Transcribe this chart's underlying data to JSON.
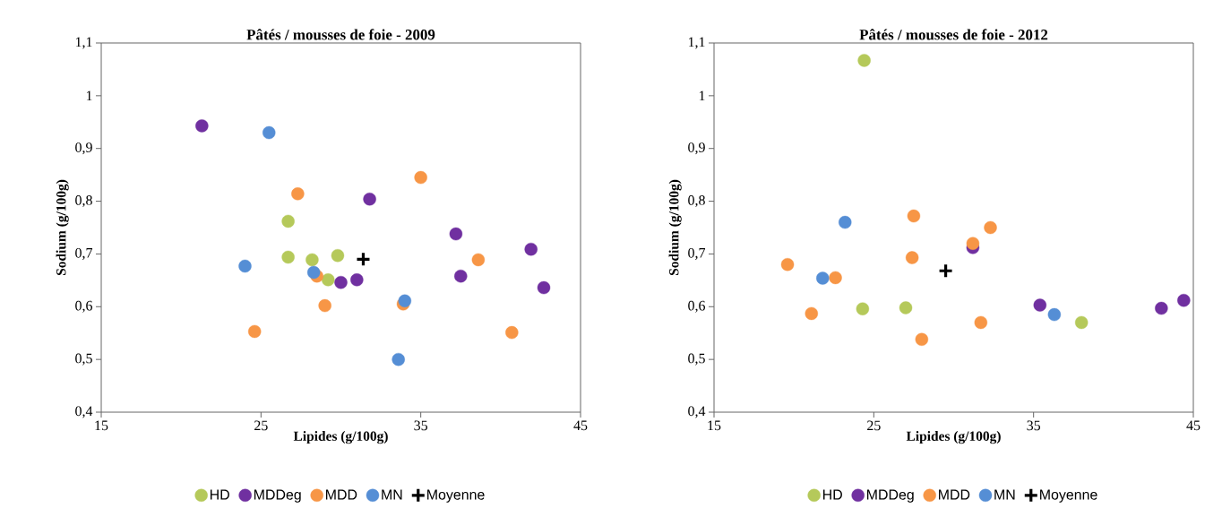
{
  "chart_data": [
    {
      "type": "scatter",
      "title": "Pâtés / mousses de foie - 2009",
      "xlabel": "Lipides (g/100g)",
      "ylabel": "Sodium (g/100g)",
      "xlim": [
        15,
        45
      ],
      "xticks": [
        15,
        25,
        35,
        45
      ],
      "ylim": [
        0.4,
        1.1
      ],
      "yticks": [
        {
          "value": 0.4,
          "label": "0,4"
        },
        {
          "value": 0.5,
          "label": "0,5"
        },
        {
          "value": 0.6,
          "label": "0,6"
        },
        {
          "value": 0.7,
          "label": "0,7"
        },
        {
          "value": 0.8,
          "label": "0,8"
        },
        {
          "value": 0.9,
          "label": "0,9"
        },
        {
          "value": 1,
          "label": "1"
        },
        {
          "value": 1.1,
          "label": "1,1"
        }
      ],
      "legend": "bottom",
      "series": [
        {
          "name": "HD",
          "color": "#b5c95a",
          "marker": "circle",
          "x": [
            26.7,
            26.7,
            28.2,
            29.8,
            29.2
          ],
          "values": [
            0.762,
            0.694,
            0.689,
            0.697,
            0.651
          ]
        },
        {
          "name": "MDDeg",
          "color": "#7030a0",
          "marker": "circle",
          "x": [
            21.3,
            31.8,
            37.2,
            41.9,
            37.5,
            30.0,
            31.0,
            42.7
          ],
          "values": [
            0.943,
            0.804,
            0.738,
            0.709,
            0.658,
            0.646,
            0.651,
            0.636
          ]
        },
        {
          "name": "MDD",
          "color": "#f79646",
          "marker": "circle",
          "x": [
            27.3,
            35.0,
            28.5,
            29.0,
            24.6,
            33.9,
            38.6,
            40.7
          ],
          "values": [
            0.814,
            0.845,
            0.658,
            0.602,
            0.553,
            0.605,
            0.689,
            0.551
          ]
        },
        {
          "name": "MN",
          "color": "#558ed5",
          "marker": "circle",
          "x": [
            25.5,
            24.0,
            28.3,
            34.0,
            33.6
          ],
          "values": [
            0.93,
            0.677,
            0.665,
            0.611,
            0.5
          ]
        },
        {
          "name": "Moyenne",
          "color": "#000000",
          "marker": "cross",
          "x": [
            31.4
          ],
          "values": [
            0.69
          ]
        }
      ]
    },
    {
      "type": "scatter",
      "title": "Pâtés / mousses de foie - 2012",
      "xlabel": "Lipides (g/100g)",
      "ylabel": "Sodium (g/100g)",
      "xlim": [
        15,
        45
      ],
      "xticks": [
        15,
        25,
        35,
        45
      ],
      "ylim": [
        0.4,
        1.1
      ],
      "yticks": [
        {
          "value": 0.4,
          "label": "0,4"
        },
        {
          "value": 0.5,
          "label": "0,5"
        },
        {
          "value": 0.6,
          "label": "0,6"
        },
        {
          "value": 0.7,
          "label": "0,7"
        },
        {
          "value": 0.8,
          "label": "0,8"
        },
        {
          "value": 0.9,
          "label": "0,9"
        },
        {
          "value": 1,
          "label": "1"
        },
        {
          "value": 1.1,
          "label": "1,1"
        }
      ],
      "legend": "bottom",
      "series": [
        {
          "name": "HD",
          "color": "#b5c95a",
          "marker": "circle",
          "x": [
            24.4,
            24.3,
            27.0,
            38.0
          ],
          "values": [
            1.067,
            0.596,
            0.598,
            0.57
          ]
        },
        {
          "name": "MDDeg",
          "color": "#7030a0",
          "marker": "circle",
          "x": [
            31.2,
            35.4,
            43.0,
            44.4
          ],
          "values": [
            0.712,
            0.603,
            0.597,
            0.612
          ]
        },
        {
          "name": "MDD",
          "color": "#f79646",
          "marker": "circle",
          "x": [
            19.6,
            21.1,
            22.6,
            27.5,
            27.4,
            31.2,
            32.3,
            31.7,
            28.0
          ],
          "values": [
            0.68,
            0.587,
            0.655,
            0.772,
            0.693,
            0.72,
            0.75,
            0.57,
            0.538
          ]
        },
        {
          "name": "MN",
          "color": "#558ed5",
          "marker": "circle",
          "x": [
            21.8,
            23.2,
            36.3
          ],
          "values": [
            0.654,
            0.76,
            0.585
          ]
        },
        {
          "name": "Moyenne",
          "color": "#000000",
          "marker": "cross",
          "x": [
            29.5
          ],
          "values": [
            0.668
          ]
        }
      ]
    }
  ]
}
